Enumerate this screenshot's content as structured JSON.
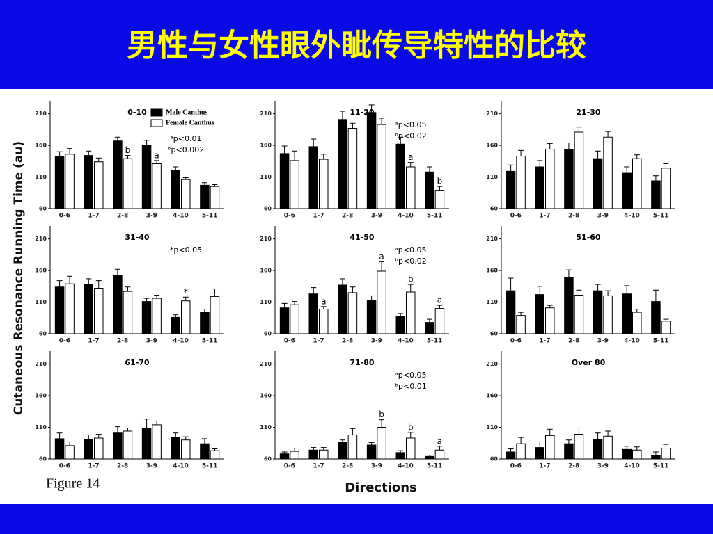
{
  "slide_title": "男性与女性眼外眦传导特性的比较",
  "ylabel": "Cutaneous Resonance Running Time (au)",
  "xlabel": "Directions",
  "figure_caption": "Figure 14",
  "chart_data": [
    {
      "type": "bar",
      "title": "0-10",
      "categories": [
        "0-6",
        "1-7",
        "2-8",
        "3-9",
        "4-10",
        "5-11"
      ],
      "ylim": [
        60,
        225
      ],
      "yticks": [
        60,
        110,
        160,
        210
      ],
      "series": [
        {
          "name": "Male Canthus",
          "color": "#000000",
          "values": [
            142,
            144,
            167,
            160,
            120,
            97
          ],
          "errors": [
            8,
            7,
            6,
            8,
            6,
            4
          ]
        },
        {
          "name": "Female Canthus",
          "color": "#ffffff",
          "values": [
            146,
            134,
            139,
            131,
            106,
            95
          ],
          "errors": [
            9,
            6,
            5,
            5,
            3,
            3
          ],
          "labels": [
            null,
            null,
            "b",
            "a",
            null,
            null
          ]
        }
      ],
      "notes": [
        "ᵃp<0.01",
        "ᵇp<0.002"
      ]
    },
    {
      "type": "bar",
      "title": "11-20",
      "categories": [
        "0-6",
        "1-7",
        "2-8",
        "3-9",
        "4-10",
        "5-11"
      ],
      "ylim": [
        60,
        225
      ],
      "yticks": [
        60,
        110,
        160,
        210
      ],
      "series": [
        {
          "color": "#000000",
          "values": [
            147,
            158,
            201,
            212,
            162,
            118
          ],
          "errors": [
            12,
            12,
            13,
            12,
            11,
            8
          ]
        },
        {
          "color": "#ffffff",
          "values": [
            136,
            138,
            187,
            193,
            126,
            89
          ],
          "errors": [
            15,
            8,
            8,
            10,
            7,
            6
          ],
          "labels": [
            null,
            null,
            null,
            null,
            "a",
            "b"
          ]
        }
      ],
      "notes": [
        "ᵃp<0.05",
        "ᵇp<0.02"
      ]
    },
    {
      "type": "bar",
      "title": "21-30",
      "categories": [
        "0-6",
        "1-7",
        "2-8",
        "3-9",
        "4-10",
        "5-11"
      ],
      "ylim": [
        60,
        225
      ],
      "yticks": [
        60,
        110,
        160,
        210
      ],
      "series": [
        {
          "color": "#000000",
          "values": [
            119,
            126,
            154,
            139,
            116,
            104
          ],
          "errors": [
            10,
            10,
            10,
            12,
            10,
            8
          ]
        },
        {
          "color": "#ffffff",
          "values": [
            143,
            154,
            181,
            173,
            139,
            124
          ],
          "errors": [
            9,
            9,
            8,
            9,
            6,
            7
          ]
        }
      ]
    },
    {
      "type": "bar",
      "title": "31-40",
      "categories": [
        "0-6",
        "1-7",
        "2-8",
        "3-9",
        "4-10",
        "5-11"
      ],
      "ylim": [
        60,
        225
      ],
      "yticks": [
        60,
        110,
        160,
        210
      ],
      "series": [
        {
          "color": "#000000",
          "values": [
            134,
            138,
            152,
            111,
            86,
            94
          ],
          "errors": [
            10,
            9,
            10,
            5,
            4,
            5
          ]
        },
        {
          "color": "#ffffff",
          "values": [
            139,
            132,
            127,
            116,
            112,
            119
          ],
          "errors": [
            12,
            12,
            7,
            5,
            6,
            12
          ],
          "labels": [
            null,
            null,
            null,
            null,
            "*",
            null
          ]
        }
      ],
      "notes": [
        "*p<0.05"
      ]
    },
    {
      "type": "bar",
      "title": "41-50",
      "categories": [
        "0-6",
        "1-7",
        "2-8",
        "3-9",
        "4-10",
        "5-11"
      ],
      "ylim": [
        60,
        225
      ],
      "yticks": [
        60,
        110,
        160,
        210
      ],
      "series": [
        {
          "color": "#000000",
          "values": [
            101,
            123,
            137,
            113,
            88,
            78
          ],
          "errors": [
            7,
            10,
            10,
            7,
            4,
            5
          ]
        },
        {
          "color": "#ffffff",
          "values": [
            106,
            99,
            125,
            159,
            126,
            100
          ],
          "errors": [
            5,
            4,
            9,
            15,
            12,
            5
          ],
          "labels": [
            null,
            "a",
            null,
            "a",
            "b",
            "a"
          ]
        }
      ],
      "notes": [
        "ᵃp<0.05",
        "ᵇp<0.02"
      ]
    },
    {
      "type": "bar",
      "title": "51-60",
      "categories": [
        "0-6",
        "1-7",
        "2-8",
        "3-9",
        "4-10",
        "5-11"
      ],
      "ylim": [
        60,
        225
      ],
      "yticks": [
        60,
        110,
        160,
        210
      ],
      "series": [
        {
          "color": "#000000",
          "values": [
            128,
            122,
            149,
            128,
            123,
            111
          ],
          "errors": [
            20,
            13,
            12,
            10,
            13,
            18
          ]
        },
        {
          "color": "#ffffff",
          "values": [
            89,
            101,
            121,
            120,
            94,
            80
          ],
          "errors": [
            5,
            4,
            8,
            8,
            5,
            3
          ]
        }
      ]
    },
    {
      "type": "bar",
      "title": "61-70",
      "categories": [
        "0-6",
        "1-7",
        "2-8",
        "3-9",
        "4-10",
        "5-11"
      ],
      "ylim": [
        60,
        225
      ],
      "yticks": [
        60,
        110,
        160,
        210
      ],
      "series": [
        {
          "color": "#000000",
          "values": [
            92,
            91,
            101,
            108,
            94,
            84
          ],
          "errors": [
            9,
            7,
            10,
            15,
            7,
            8
          ]
        },
        {
          "color": "#ffffff",
          "values": [
            81,
            93,
            104,
            114,
            90,
            73
          ],
          "errors": [
            6,
            6,
            5,
            6,
            5,
            3
          ]
        }
      ]
    },
    {
      "type": "bar",
      "title": "71-80",
      "categories": [
        "0-6",
        "1-7",
        "2-8",
        "3-9",
        "4-10",
        "5-11"
      ],
      "ylim": [
        60,
        225
      ],
      "yticks": [
        60,
        110,
        160,
        210
      ],
      "series": [
        {
          "color": "#000000",
          "values": [
            68,
            74,
            86,
            82,
            70,
            64
          ],
          "errors": [
            3,
            4,
            4,
            4,
            3,
            2
          ]
        },
        {
          "color": "#ffffff",
          "values": [
            72,
            74,
            98,
            110,
            93,
            74
          ],
          "errors": [
            5,
            4,
            10,
            12,
            9,
            6
          ],
          "labels": [
            null,
            null,
            null,
            "b",
            "b",
            "a"
          ]
        }
      ],
      "notes": [
        "ᵃp<0.05",
        "ᵇp<0.01"
      ]
    },
    {
      "type": "bar",
      "title": "Over 80",
      "categories": [
        "0-6",
        "1-7",
        "2-8",
        "3-9",
        "4-10",
        "5-11"
      ],
      "ylim": [
        60,
        225
      ],
      "yticks": [
        60,
        110,
        160,
        210
      ],
      "series": [
        {
          "color": "#000000",
          "values": [
            71,
            78,
            84,
            91,
            75,
            66
          ],
          "errors": [
            5,
            9,
            6,
            10,
            5,
            5
          ]
        },
        {
          "color": "#ffffff",
          "values": [
            84,
            97,
            99,
            96,
            74,
            77
          ],
          "errors": [
            10,
            10,
            10,
            8,
            5,
            6
          ]
        }
      ]
    }
  ]
}
